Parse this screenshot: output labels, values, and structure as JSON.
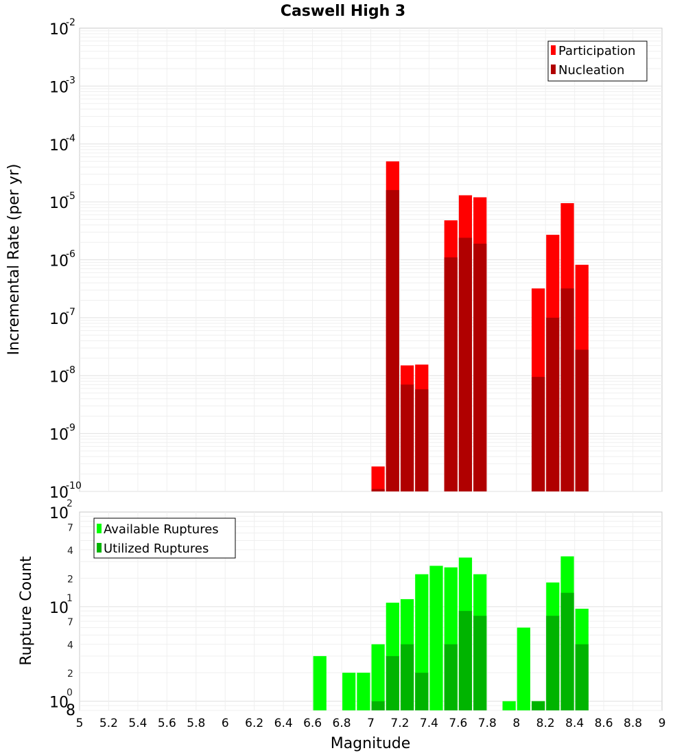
{
  "chart_data": [
    {
      "type": "bar",
      "title": "Caswell High 3",
      "ylabel": "Incremental Rate (per yr)",
      "xlabel": "",
      "yscale": "log",
      "ylim": [
        1e-10,
        0.01
      ],
      "xlim": [
        5,
        9
      ],
      "grid": true,
      "legend_position": "top-right",
      "x": [
        7.05,
        7.15,
        7.25,
        7.35,
        7.55,
        7.65,
        7.75,
        8.15,
        8.25,
        8.35,
        8.45
      ],
      "series": [
        {
          "name": "Participation",
          "color": "#ff0000",
          "values": [
            2.7e-10,
            5e-05,
            1.5e-08,
            1.55e-08,
            4.8e-06,
            1.3e-05,
            1.2e-05,
            3.2e-07,
            2.7e-06,
            9.5e-06,
            8.2e-07
          ]
        },
        {
          "name": "Nucleation",
          "color": "#b00000",
          "values": [
            1.1e-10,
            1.6e-05,
            7e-09,
            5.8e-09,
            1.1e-06,
            2.4e-06,
            1.9e-06,
            9.5e-09,
            1e-07,
            3.2e-07,
            2.8e-08
          ]
        }
      ]
    },
    {
      "type": "bar",
      "title": "",
      "ylabel": "Rupture Count",
      "xlabel": "Magnitude",
      "yscale": "log",
      "ylim": [
        0.8,
        100
      ],
      "xlim": [
        5,
        9
      ],
      "grid": true,
      "legend_position": "top-left",
      "x_ticks": [
        "5",
        "5.2",
        "5.4",
        "5.6",
        "5.8",
        "6",
        "6.2",
        "6.4",
        "6.6",
        "6.8",
        "7",
        "7.2",
        "7.4",
        "7.6",
        "7.8",
        "8",
        "8.2",
        "8.4",
        "8.6",
        "8.8",
        "9"
      ],
      "y_ticks": {
        "major": [
          "10^0",
          "10^1",
          "10^2"
        ],
        "minor": [
          "8",
          "2",
          "4",
          "7",
          "2",
          "4",
          "7"
        ]
      },
      "series": [
        {
          "name": "Available Ruptures",
          "color": "#00ff00",
          "points": [
            [
              6.65,
              3
            ],
            [
              6.85,
              2
            ],
            [
              6.95,
              2
            ],
            [
              7.05,
              4
            ],
            [
              7.15,
              11
            ],
            [
              7.25,
              12
            ],
            [
              7.35,
              22
            ],
            [
              7.45,
              27
            ],
            [
              7.55,
              26
            ],
            [
              7.65,
              33
            ],
            [
              7.75,
              22
            ],
            [
              7.95,
              1
            ],
            [
              8.05,
              6
            ],
            [
              8.15,
              1
            ],
            [
              8.25,
              18
            ],
            [
              8.35,
              34
            ],
            [
              8.45,
              9.5
            ]
          ]
        },
        {
          "name": "Utilized Ruptures",
          "color": "#00b400",
          "points": [
            [
              7.05,
              1
            ],
            [
              7.15,
              3
            ],
            [
              7.25,
              4
            ],
            [
              7.35,
              2
            ],
            [
              7.55,
              4
            ],
            [
              7.65,
              9
            ],
            [
              7.75,
              8
            ],
            [
              8.15,
              1
            ],
            [
              8.25,
              8
            ],
            [
              8.35,
              14
            ],
            [
              8.45,
              4
            ]
          ]
        }
      ]
    }
  ]
}
